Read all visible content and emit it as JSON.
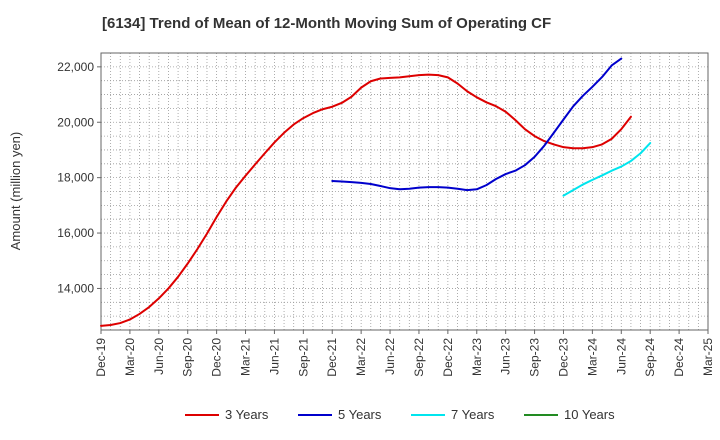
{
  "chart_data": {
    "type": "line",
    "title": "[6134]  Trend of Mean of 12-Month Moving Sum of Operating CF",
    "xlabel": "",
    "ylabel": "Amount (million yen)",
    "ylim": [
      12500,
      22500
    ],
    "yticks": [
      14000,
      16000,
      18000,
      20000,
      22000
    ],
    "ytick_labels": [
      "14,000",
      "16,000",
      "18,000",
      "20,000",
      "22,000"
    ],
    "x_start": "Dec-19",
    "x_end": "Mar-25",
    "xtick_labels": [
      "Dec-19",
      "Mar-20",
      "Jun-20",
      "Sep-20",
      "Dec-20",
      "Mar-21",
      "Jun-21",
      "Sep-21",
      "Dec-21",
      "Mar-22",
      "Jun-22",
      "Sep-22",
      "Dec-22",
      "Mar-23",
      "Jun-23",
      "Sep-23",
      "Dec-23",
      "Mar-24",
      "Jun-24",
      "Sep-24",
      "Dec-24",
      "Mar-25"
    ],
    "grid": true,
    "legend_position": "bottom",
    "series": [
      {
        "name": "3 Years",
        "color": "#dd0000",
        "start_index": 0,
        "values": [
          12650,
          12680,
          12750,
          12880,
          13080,
          13330,
          13640,
          14000,
          14420,
          14900,
          15420,
          15980,
          16580,
          17140,
          17640,
          18070,
          18480,
          18880,
          19270,
          19620,
          19920,
          20150,
          20330,
          20470,
          20560,
          20700,
          20920,
          21250,
          21480,
          21580,
          21600,
          21620,
          21660,
          21700,
          21720,
          21700,
          21620,
          21400,
          21120,
          20900,
          20720,
          20580,
          20380,
          20080,
          19750,
          19500,
          19320,
          19200,
          19100,
          19060,
          19060,
          19100,
          19200,
          19400,
          19750,
          20200
        ]
      },
      {
        "name": "5 Years",
        "color": "#0000cc",
        "start_index": 24,
        "values": [
          17880,
          17860,
          17840,
          17810,
          17770,
          17700,
          17620,
          17580,
          17600,
          17640,
          17660,
          17660,
          17640,
          17600,
          17550,
          17580,
          17730,
          17950,
          18130,
          18250,
          18450,
          18750,
          19150,
          19620,
          20100,
          20570,
          20950,
          21280,
          21630,
          22050,
          22300
        ]
      },
      {
        "name": "7 Years",
        "color": "#00e5ee",
        "start_index": 48,
        "values": [
          17350,
          17550,
          17750,
          17920,
          18080,
          18250,
          18400,
          18600,
          18880,
          19250
        ]
      },
      {
        "name": "10 Years",
        "color": "#228b22",
        "start_index": 0,
        "values": []
      }
    ]
  }
}
